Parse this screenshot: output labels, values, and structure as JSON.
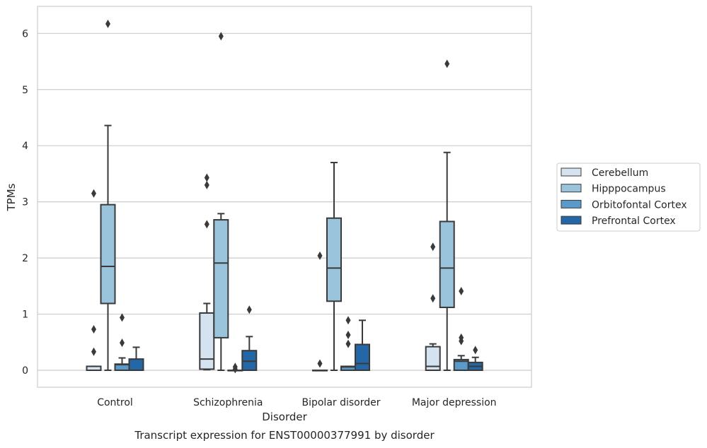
{
  "chart_data": {
    "type": "box",
    "title": "Transcript expression for ENST00000377991 by disorder",
    "xlabel": "Disorder",
    "ylabel": "TPMs",
    "ylim": [
      -0.3,
      6.5
    ],
    "yticks": [
      "0",
      "1",
      "2",
      "3",
      "4",
      "5",
      "6"
    ],
    "grid": "horizontal",
    "legend_position": "right",
    "categories": [
      "Control",
      "Schizophrenia",
      "Bipolar disorder",
      "Major depression"
    ],
    "series": [
      {
        "name": "Cerebellum",
        "color": "#d5e3f0",
        "boxes": [
          {
            "whislo": 0.0,
            "q1": 0.0,
            "med": 0.0,
            "q3": 0.07,
            "whishi": 0.07,
            "fliers": [
              0.33,
              0.73,
              3.15
            ]
          },
          {
            "whislo": 0.01,
            "q1": 0.02,
            "med": 0.2,
            "q3": 1.02,
            "whishi": 1.19,
            "fliers": [
              2.6,
              3.3,
              3.43
            ]
          },
          {
            "whislo": 0.0,
            "q1": 0.0,
            "med": 0.0,
            "q3": 0.0,
            "whishi": 0.0,
            "fliers": [
              0.12,
              2.04
            ]
          },
          {
            "whislo": 0.0,
            "q1": 0.0,
            "med": 0.07,
            "q3": 0.42,
            "whishi": 0.47,
            "fliers": [
              1.28,
              2.2
            ]
          }
        ]
      },
      {
        "name": "Hipppocampus",
        "color": "#9ac3dc",
        "boxes": [
          {
            "whislo": 0.0,
            "q1": 1.19,
            "med": 1.85,
            "q3": 2.95,
            "whishi": 4.36,
            "fliers": [
              6.17
            ]
          },
          {
            "whislo": 0.0,
            "q1": 0.58,
            "med": 1.91,
            "q3": 2.68,
            "whishi": 2.79,
            "fliers": [
              5.95
            ]
          },
          {
            "whislo": 0.0,
            "q1": 1.23,
            "med": 1.82,
            "q3": 2.71,
            "whishi": 3.7,
            "fliers": []
          },
          {
            "whislo": 0.0,
            "q1": 1.12,
            "med": 1.82,
            "q3": 2.65,
            "whishi": 3.88,
            "fliers": [
              5.46
            ]
          }
        ]
      },
      {
        "name": "Orbitofontal Cortex",
        "color": "#5a9ac8",
        "boxes": [
          {
            "whislo": 0.0,
            "q1": 0.0,
            "med": 0.1,
            "q3": 0.11,
            "whishi": 0.22,
            "fliers": [
              0.49,
              0.94
            ]
          },
          {
            "whislo": 0.0,
            "q1": 0.0,
            "med": 0.0,
            "q3": 0.0,
            "whishi": 0.0,
            "fliers": [
              0.02,
              0.06
            ]
          },
          {
            "whislo": 0.0,
            "q1": 0.0,
            "med": 0.06,
            "q3": 0.07,
            "whishi": 0.07,
            "fliers": [
              0.47,
              0.63,
              0.89
            ]
          },
          {
            "whislo": 0.0,
            "q1": 0.0,
            "med": 0.16,
            "q3": 0.19,
            "whishi": 0.26,
            "fliers": [
              0.52,
              0.58,
              1.41
            ]
          }
        ]
      },
      {
        "name": "Prefrontal Cortex",
        "color": "#2467a6",
        "boxes": [
          {
            "whislo": 0.0,
            "q1": 0.0,
            "med": 0.0,
            "q3": 0.2,
            "whishi": 0.41,
            "fliers": []
          },
          {
            "whislo": 0.0,
            "q1": 0.0,
            "med": 0.16,
            "q3": 0.35,
            "whishi": 0.6,
            "fliers": [
              1.08
            ]
          },
          {
            "whislo": 0.0,
            "q1": 0.0,
            "med": 0.12,
            "q3": 0.46,
            "whishi": 0.89,
            "fliers": []
          },
          {
            "whislo": 0.0,
            "q1": 0.0,
            "med": 0.07,
            "q3": 0.14,
            "whishi": 0.23,
            "fliers": [
              0.36
            ]
          }
        ]
      }
    ]
  }
}
